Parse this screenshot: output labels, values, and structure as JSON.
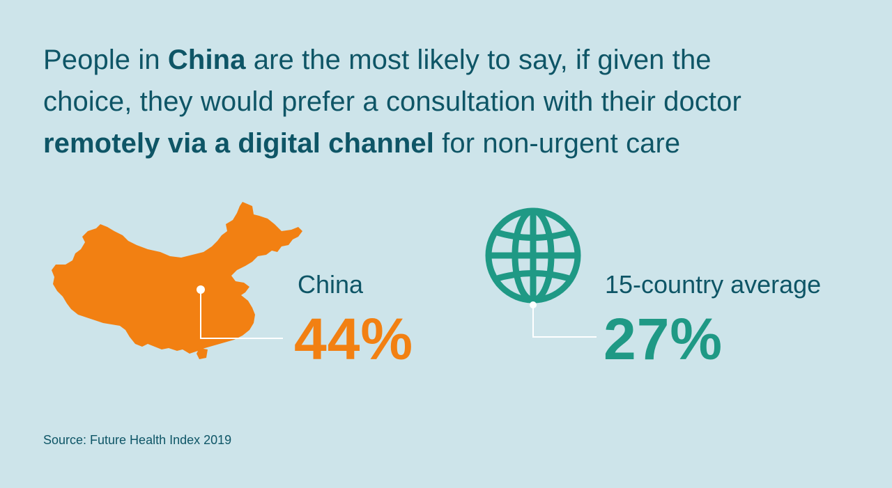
{
  "headline": {
    "line1_pre": "People in ",
    "line1_bold": "China",
    "line1_post": " are the most likely to say, if given the",
    "line2": "choice, they would prefer a consultation with their doctor",
    "line3_bold": "remotely via a digital channel",
    "line3_post": " for non-urgent care"
  },
  "china": {
    "label": "China",
    "value": "44%",
    "color": "#f28012",
    "icon": "china-map-icon"
  },
  "average": {
    "label": "15-country average",
    "value": "27%",
    "color": "#1f9985",
    "icon": "globe-icon"
  },
  "source": "Source: Future Health Index 2019",
  "colors": {
    "background": "#cde4ea",
    "text": "#0e5566"
  }
}
